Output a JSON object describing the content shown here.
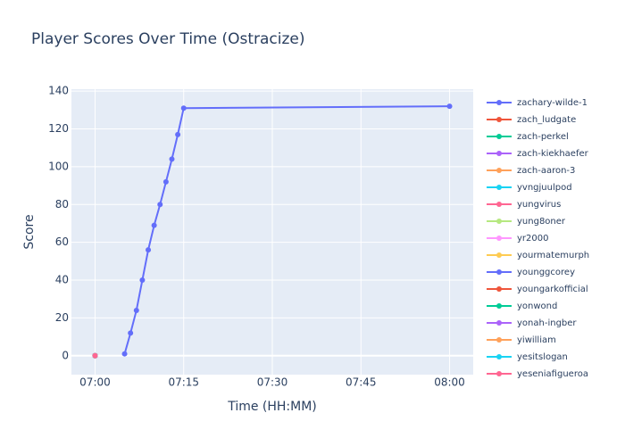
{
  "chart_data": {
    "type": "line",
    "title": "Player Scores Over Time (Ostracize)",
    "x_label": "Time (HH:MM)",
    "y_label": "Score",
    "xlim": [
      "06:56",
      "08:04"
    ],
    "xticks": [
      "07:00",
      "07:15",
      "07:30",
      "07:45",
      "08:00"
    ],
    "ylim": [
      -10,
      141
    ],
    "yticks": [
      0,
      20,
      40,
      60,
      80,
      100,
      120,
      140
    ],
    "grid": true,
    "series": [
      {
        "name": "zachary-wilde-1",
        "color": "#636efa",
        "x": [
          "07:05",
          "07:06",
          "07:07",
          "07:08",
          "07:09",
          "07:10",
          "07:11",
          "07:12",
          "07:13",
          "07:14",
          "07:15",
          "08:00"
        ],
        "values": [
          1,
          12,
          24,
          40,
          56,
          69,
          80,
          92,
          104,
          117,
          131,
          132
        ]
      },
      {
        "name": "zach_ludgate",
        "color": "#EF553B",
        "x": [
          "07:00"
        ],
        "values": [
          0
        ]
      },
      {
        "name": "zach-perkel",
        "color": "#00cc96",
        "x": [
          "07:00"
        ],
        "values": [
          0
        ]
      },
      {
        "name": "zach-kiekhaefer",
        "color": "#ab63fa",
        "x": [
          "07:00"
        ],
        "values": [
          0
        ]
      },
      {
        "name": "zach-aaron-3",
        "color": "#FFA15A",
        "x": [
          "07:00"
        ],
        "values": [
          0
        ]
      },
      {
        "name": "yvngjuulpod",
        "color": "#19d3f3",
        "x": [
          "07:00"
        ],
        "values": [
          0
        ]
      },
      {
        "name": "yungvirus",
        "color": "#FF6692",
        "x": [
          "07:00"
        ],
        "values": [
          0
        ]
      },
      {
        "name": "yung8oner",
        "color": "#B6E880",
        "x": [
          "07:00"
        ],
        "values": [
          0
        ]
      },
      {
        "name": "yr2000",
        "color": "#FF97FF",
        "x": [
          "07:00"
        ],
        "values": [
          0
        ]
      },
      {
        "name": "yourmatemurph",
        "color": "#FECB52",
        "x": [
          "07:00"
        ],
        "values": [
          0
        ]
      },
      {
        "name": "younggcorey",
        "color": "#636efa",
        "x": [
          "07:00"
        ],
        "values": [
          0
        ]
      },
      {
        "name": "youngarkofficial",
        "color": "#EF553B",
        "x": [
          "07:00"
        ],
        "values": [
          0
        ]
      },
      {
        "name": "yonwond",
        "color": "#00cc96",
        "x": [
          "07:00"
        ],
        "values": [
          0
        ]
      },
      {
        "name": "yonah-ingber",
        "color": "#ab63fa",
        "x": [
          "07:00"
        ],
        "values": [
          0
        ]
      },
      {
        "name": "yiwilliam",
        "color": "#FFA15A",
        "x": [
          "07:00"
        ],
        "values": [
          0
        ]
      },
      {
        "name": "yesitslogan",
        "color": "#19d3f3",
        "x": [
          "07:00"
        ],
        "values": [
          0
        ]
      },
      {
        "name": "yeseniafigueroa",
        "color": "#FF6692",
        "x": [
          "07:00"
        ],
        "values": [
          0
        ]
      }
    ]
  }
}
